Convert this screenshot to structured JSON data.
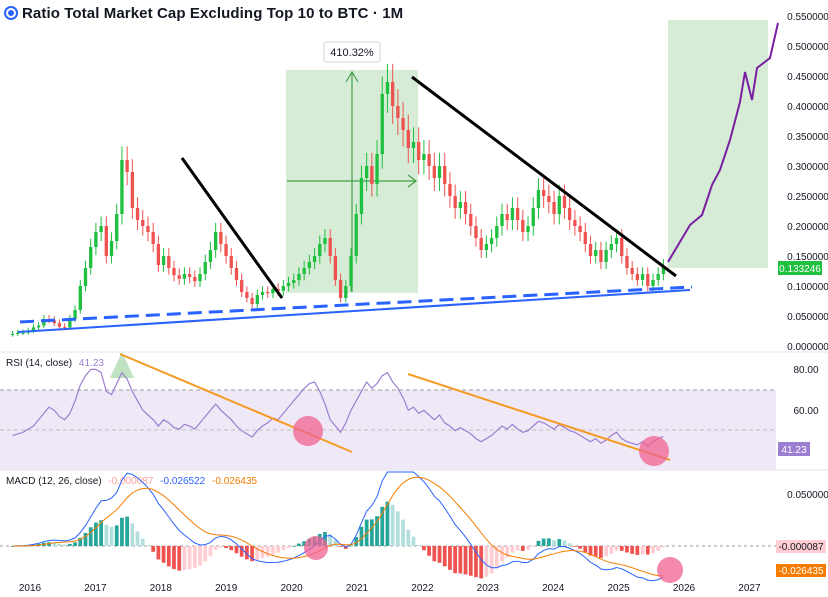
{
  "header": {
    "title": "Ratio Total Market Cap Excluding Top 10 to BTC · 1M"
  },
  "colors": {
    "up": "#26a69a",
    "upBright": "#1fbf3f",
    "down": "#ef5350",
    "trend": "#000000",
    "support": "#2962ff",
    "rsi": "#9c7ed0",
    "rsiTrend": "#f59a23",
    "macd": "#2962ff",
    "signal": "#f57c00",
    "histPos": "#26a69a",
    "histPosLight": "#b2dfdb",
    "histNeg": "#ef5350",
    "histNegLight": "#ffcdd2",
    "projection": "#7b1fa2",
    "boxFill": "#c8e6c9",
    "circle": "#f06292"
  },
  "rsi_panel": {
    "label": "RSI (14, close)",
    "value": "41.23",
    "ticks": [
      "80.00",
      "60.00"
    ]
  },
  "macd_panel": {
    "label": "MACD (12, 26, close)",
    "hist": "-0.000087",
    "macd": "-0.026522",
    "signal": "-0.026435",
    "ticks": [
      "0.050000"
    ]
  },
  "annotation": {
    "gain_label": "410.32%"
  },
  "chart_data": [
    {
      "type": "candlestick",
      "title": "Ratio Total Market Cap Excluding Top 10 to BTC · 1M",
      "y_ticks": [
        "0.550000",
        "0.500000",
        "0.450000",
        "0.400000",
        "0.350000",
        "0.300000",
        "0.250000",
        "0.200000",
        "0.150000",
        "0.100000",
        "0.050000",
        "0.000000"
      ],
      "ylim": [
        0,
        0.55
      ],
      "x_ticks": [
        "2016",
        "2017",
        "2018",
        "2019",
        "2020",
        "2021",
        "2022",
        "2023",
        "2024",
        "2025",
        "2026",
        "2027"
      ],
      "last_value": "0.133246",
      "close": [
        0.02,
        0.022,
        0.022,
        0.025,
        0.031,
        0.034,
        0.045,
        0.043,
        0.038,
        0.032,
        0.031,
        0.045,
        0.06,
        0.1,
        0.13,
        0.165,
        0.19,
        0.2,
        0.15,
        0.175,
        0.22,
        0.31,
        0.29,
        0.23,
        0.21,
        0.2,
        0.19,
        0.17,
        0.135,
        0.15,
        0.13,
        0.118,
        0.112,
        0.12,
        0.115,
        0.108,
        0.12,
        0.14,
        0.16,
        0.19,
        0.17,
        0.15,
        0.13,
        0.11,
        0.09,
        0.08,
        0.07,
        0.085,
        0.09,
        0.088,
        0.095,
        0.092,
        0.1,
        0.105,
        0.11,
        0.12,
        0.13,
        0.14,
        0.15,
        0.17,
        0.18,
        0.15,
        0.11,
        0.08,
        0.1,
        0.15,
        0.22,
        0.28,
        0.3,
        0.27,
        0.32,
        0.42,
        0.44,
        0.4,
        0.38,
        0.36,
        0.33,
        0.34,
        0.31,
        0.32,
        0.3,
        0.28,
        0.3,
        0.27,
        0.25,
        0.23,
        0.24,
        0.22,
        0.2,
        0.18,
        0.16,
        0.17,
        0.18,
        0.2,
        0.22,
        0.21,
        0.23,
        0.21,
        0.19,
        0.2,
        0.23,
        0.26,
        0.25,
        0.24,
        0.22,
        0.25,
        0.23,
        0.21,
        0.2,
        0.19,
        0.17,
        0.15,
        0.16,
        0.14,
        0.16,
        0.17,
        0.18,
        0.15,
        0.13,
        0.12,
        0.11,
        0.12,
        0.1,
        0.11,
        0.12,
        0.133
      ],
      "annotations": [
        "410.32%"
      ]
    },
    {
      "type": "line",
      "title": "RSI (14, close)",
      "y_ticks": [
        "80.00",
        "60.00"
      ],
      "last_value": "41.23",
      "values": [
        42,
        43,
        44,
        46,
        48,
        52,
        56,
        60,
        58,
        54,
        52,
        56,
        64,
        74,
        80,
        84,
        84,
        82,
        70,
        68,
        75,
        82,
        78,
        70,
        64,
        58,
        55,
        52,
        48,
        52,
        50,
        47,
        46,
        49,
        48,
        46,
        50,
        54,
        58,
        62,
        58,
        55,
        52,
        48,
        45,
        43,
        41,
        45,
        48,
        50,
        53,
        52,
        56,
        60,
        64,
        68,
        72,
        75,
        76,
        70,
        62,
        52,
        48,
        44,
        50,
        58,
        64,
        70,
        76,
        72,
        75,
        80,
        82,
        76,
        72,
        66,
        58,
        60,
        56,
        58,
        55,
        52,
        55,
        50,
        48,
        45,
        47,
        45,
        43,
        40,
        38,
        40,
        42,
        45,
        48,
        46,
        49,
        46,
        44,
        45,
        48,
        51,
        50,
        48,
        46,
        49,
        47,
        45,
        44,
        42,
        40,
        38,
        40,
        37,
        39,
        42,
        44,
        40,
        38,
        37,
        36,
        38,
        35,
        38,
        40,
        41.23
      ]
    },
    {
      "type": "line",
      "title": "MACD (12, 26, close)",
      "y_ticks": [
        "0.050000"
      ],
      "series": [
        {
          "name": "MACD",
          "last": "-0.026522"
        },
        {
          "name": "Signal",
          "last": "-0.026435"
        },
        {
          "name": "Histogram",
          "last": "-0.000087"
        }
      ]
    }
  ]
}
